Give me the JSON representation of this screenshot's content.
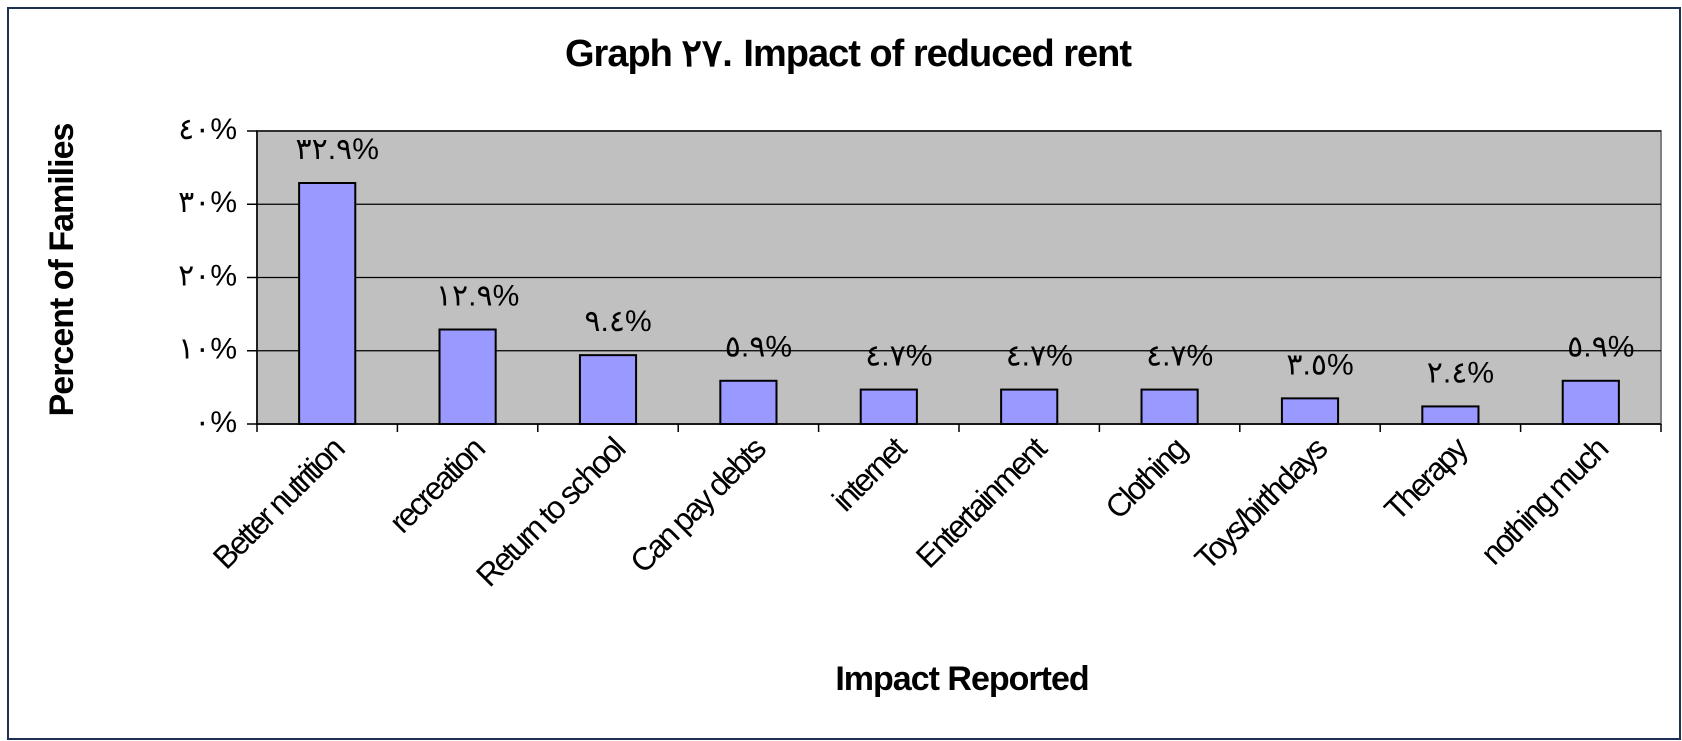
{
  "chart_data": {
    "type": "bar",
    "title": "Graph ٢٧. Impact of reduced rent",
    "x_label": "Impact Reported",
    "y_label": "Percent of Families",
    "categories": [
      "Better nutrition",
      "recreation",
      "Return to school",
      "Can pay debts",
      "internet",
      "Entertainment",
      "Clothing",
      "Toys/birthdays",
      "Therapy",
      "nothing much"
    ],
    "values": [
      32.9,
      12.9,
      9.4,
      5.9,
      4.7,
      4.7,
      4.7,
      3.5,
      2.4,
      5.9
    ],
    "value_labels": [
      "٣٢.٩%",
      "١٢.٩%",
      "٩.٤%",
      "٥.٩%",
      "٤.٧%",
      "٤.٧%",
      "٤.٧%",
      "٣.٥%",
      "٢.٤%",
      "٥.٩%"
    ],
    "color": "#9999ff",
    "ylim": [
      0,
      40
    ],
    "yticks": [
      {
        "value": 0,
        "label": "٠%"
      },
      {
        "value": 10,
        "label": "١٠%"
      },
      {
        "value": 20,
        "label": "٢٠%"
      },
      {
        "value": 30,
        "label": "٣٠%"
      },
      {
        "value": 40,
        "label": "٤٠%"
      }
    ],
    "grid": true
  }
}
